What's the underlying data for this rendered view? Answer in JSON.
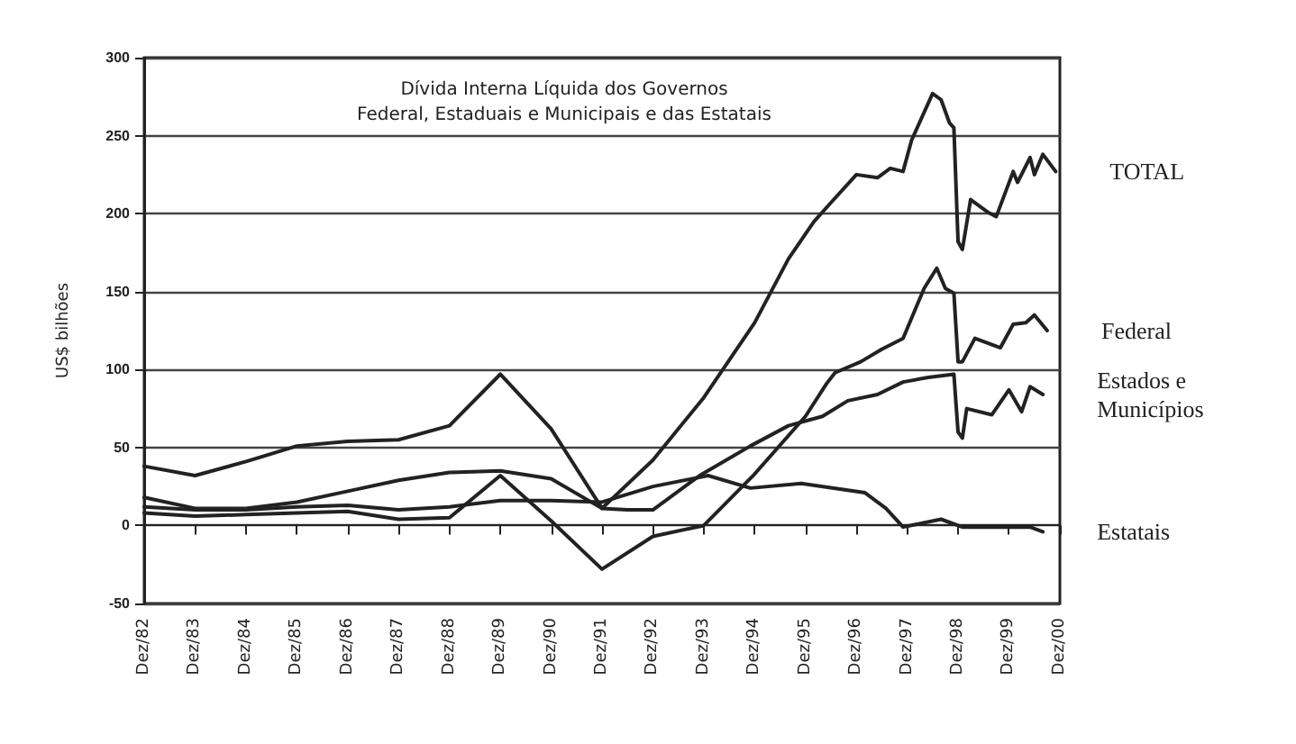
{
  "chart_data": {
    "type": "line",
    "title": "Dívida Interna Líquida dos Governos\nFederal, Estaduais e Municipais e das Estatais",
    "ylabel": "US$ bilhões",
    "ylim": [
      -50,
      300
    ],
    "yticks": [
      -50,
      0,
      50,
      100,
      150,
      200,
      250,
      300
    ],
    "xlim": [
      "1982-12",
      "2000-12"
    ],
    "xticks": [
      {
        "value": "1982-12",
        "label": "Dez/82"
      },
      {
        "value": "1983-12",
        "label": "Dez/83"
      },
      {
        "value": "1984-12",
        "label": "Dez/84"
      },
      {
        "value": "1985-12",
        "label": "Dez/85"
      },
      {
        "value": "1986-12",
        "label": "Dez/86"
      },
      {
        "value": "1987-12",
        "label": "Dez/87"
      },
      {
        "value": "1988-12",
        "label": "Dez/88"
      },
      {
        "value": "1989-12",
        "label": "Dez/89"
      },
      {
        "value": "1990-12",
        "label": "Dez/90"
      },
      {
        "value": "1991-12",
        "label": "Dez/91"
      },
      {
        "value": "1992-12",
        "label": "Dez/92"
      },
      {
        "value": "1993-12",
        "label": "Dez/93"
      },
      {
        "value": "1994-12",
        "label": "Dez/94"
      },
      {
        "value": "1995-12",
        "label": "Dez/95"
      },
      {
        "value": "1996-12",
        "label": "Dez/96"
      },
      {
        "value": "1997-12",
        "label": "Dez/97"
      },
      {
        "value": "1998-12",
        "label": "Dez/98"
      },
      {
        "value": "1999-12",
        "label": "Dez/99"
      },
      {
        "value": "2000-12",
        "label": "Dez/00"
      }
    ],
    "grid": "y",
    "legend": "right",
    "marker": "none",
    "line_style": "solid",
    "series": [
      {
        "name": "TOTAL",
        "color": "#222222",
        "x": [
          "1982-12",
          "1983-12",
          "1984-12",
          "1985-12",
          "1986-12",
          "1987-12",
          "1988-12",
          "1989-12",
          "1990-12",
          "1991-12",
          "1992-12",
          "1993-12",
          "1994-12",
          "1995-08",
          "1996-02",
          "1996-06",
          "1996-12",
          "1997-05",
          "1997-08",
          "1997-11",
          "1998-01",
          "1998-06",
          "1998-08",
          "1998-10",
          "1998-11",
          "1998-12",
          "1999-01",
          "1999-03",
          "1999-07",
          "1999-09",
          "2000-01",
          "2000-02",
          "2000-05",
          "2000-06",
          "2000-08",
          "2000-11"
        ],
        "values": [
          38,
          32,
          41,
          51,
          54,
          55,
          64,
          97,
          62,
          11,
          42,
          82,
          130,
          171,
          195,
          207,
          225,
          223,
          229,
          227,
          247,
          277,
          273,
          258,
          255,
          182,
          177,
          209,
          201,
          198,
          227,
          220,
          236,
          225,
          238,
          227
        ]
      },
      {
        "name": "Federal",
        "color": "#222222",
        "x": [
          "1982-12",
          "1983-12",
          "1984-12",
          "1985-12",
          "1986-12",
          "1987-12",
          "1988-12",
          "1989-12",
          "1990-12",
          "1991-12",
          "1992-12",
          "1993-12",
          "1994-12",
          "1995-12",
          "1996-05",
          "1996-07",
          "1997-01",
          "1997-06",
          "1997-11",
          "1998-04",
          "1998-07",
          "1998-09",
          "1998-11",
          "1998-12",
          "1999-01",
          "1999-04",
          "1999-08",
          "1999-10",
          "2000-01",
          "2000-04",
          "2000-06",
          "2000-09"
        ],
        "values": [
          8,
          6,
          7,
          8,
          9,
          4,
          5,
          32,
          3,
          -28,
          -7,
          0,
          33,
          70,
          91,
          98,
          105,
          113,
          120,
          152,
          165,
          152,
          149,
          105,
          105,
          120,
          116,
          114,
          129,
          130,
          135,
          125
        ]
      },
      {
        "name": "Estados e\nMunicípios",
        "color": "#222222",
        "x": [
          "1982-12",
          "1983-12",
          "1984-12",
          "1985-12",
          "1986-12",
          "1987-12",
          "1988-12",
          "1989-12",
          "1990-12",
          "1991-12",
          "1992-06",
          "1992-12",
          "1993-11",
          "1994-11",
          "1995-08",
          "1996-04",
          "1996-10",
          "1997-05",
          "1997-11",
          "1998-05",
          "1998-11",
          "1998-12",
          "1999-01",
          "1999-02",
          "1999-08",
          "1999-12",
          "2000-03",
          "2000-05",
          "2000-08"
        ],
        "values": [
          18,
          11,
          11,
          15,
          22,
          29,
          34,
          35,
          30,
          11,
          10,
          10,
          32,
          51,
          64,
          70,
          80,
          84,
          92,
          95,
          97,
          60,
          56,
          75,
          71,
          87,
          73,
          89,
          84
        ]
      },
      {
        "name": "Estatais",
        "color": "#222222",
        "x": [
          "1982-12",
          "1983-12",
          "1984-12",
          "1985-12",
          "1986-12",
          "1987-12",
          "1988-12",
          "1989-12",
          "1990-12",
          "1991-12",
          "1992-12",
          "1994-01",
          "1994-11",
          "1995-11",
          "1997-02",
          "1997-07",
          "1997-11",
          "1998-08",
          "1999-01",
          "2000-05",
          "2000-08"
        ],
        "values": [
          12,
          10,
          10,
          12,
          13,
          10,
          12,
          16,
          16,
          15,
          25,
          32,
          24,
          27,
          21,
          11,
          -1,
          4,
          -1,
          -1,
          -4
        ]
      }
    ]
  }
}
